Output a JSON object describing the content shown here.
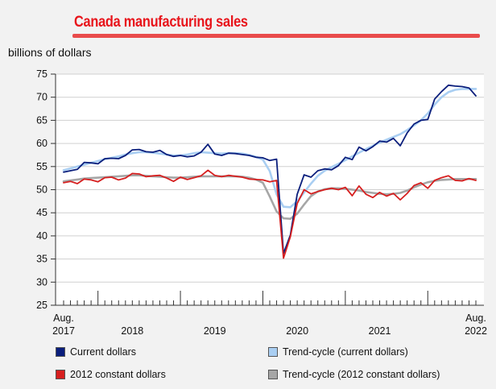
{
  "header": {
    "title": "Canada manufacturing sales",
    "units": "billions of dollars"
  },
  "legend": [
    {
      "key": "current",
      "label": "Current dollars",
      "color": "#0a1e7c"
    },
    {
      "key": "trend_current",
      "label": "Trend-cycle (current dollars)",
      "color": "#a9cef2"
    },
    {
      "key": "constant",
      "label": "2012 constant dollars",
      "color": "#d61f1f"
    },
    {
      "key": "trend_constant",
      "label": "Trend-cycle (2012 constant dollars)",
      "color": "#a6a6a6"
    }
  ],
  "chart_data": {
    "type": "line",
    "title": "Canada manufacturing sales",
    "ylabel": "billions of dollars",
    "xlabel": "",
    "ylim": [
      25,
      75
    ],
    "yticks": [
      25,
      30,
      35,
      40,
      45,
      50,
      55,
      60,
      65,
      70,
      75
    ],
    "x_start": "Aug. 2017",
    "x_end": "Aug. 2022",
    "xaxis_labels": [
      {
        "text": "Aug.\n2017",
        "index": 0
      },
      {
        "text": "2018",
        "index": 10
      },
      {
        "text": "2019",
        "index": 22
      },
      {
        "text": "2020",
        "index": 34
      },
      {
        "text": "2021",
        "index": 46
      },
      {
        "text": "Aug.\n2022",
        "index": 60
      }
    ],
    "series": [
      {
        "name": "Current dollars",
        "color": "#0a1e7c",
        "values": [
          53.8,
          54.1,
          54.4,
          55.9,
          55.8,
          55.6,
          56.7,
          56.8,
          56.7,
          57.4,
          58.6,
          58.7,
          58.2,
          58.1,
          58.5,
          57.6,
          57.2,
          57.4,
          57.1,
          57.3,
          58.1,
          59.8,
          57.7,
          57.4,
          57.9,
          57.8,
          57.6,
          57.4,
          57.0,
          56.9,
          56.3,
          56.6,
          36.2,
          40.2,
          49.0,
          53.2,
          52.7,
          54.1,
          54.5,
          54.3,
          55.2,
          57.0,
          56.5,
          59.2,
          58.4,
          59.3,
          60.5,
          60.3,
          61.1,
          59.5,
          62.3,
          64.2,
          65.0,
          65.2,
          69.6,
          71.2,
          72.6,
          72.4,
          72.3,
          72.0,
          70.3
        ],
        "trend": false
      },
      {
        "name": "Trend-cycle (current dollars)",
        "color": "#a9cef2",
        "values": [
          54.2,
          54.6,
          55.0,
          55.4,
          55.8,
          56.2,
          56.6,
          56.9,
          57.2,
          57.6,
          57.9,
          58.1,
          58.1,
          58.0,
          57.8,
          57.6,
          57.4,
          57.4,
          57.6,
          57.9,
          58.1,
          58.0,
          57.9,
          57.8,
          57.9,
          57.9,
          57.8,
          57.5,
          57.1,
          56.5,
          54.0,
          49.0,
          46.3,
          46.2,
          47.5,
          49.4,
          51.3,
          53.0,
          54.1,
          54.9,
          55.6,
          56.4,
          57.2,
          58.0,
          58.8,
          59.5,
          60.2,
          60.8,
          61.4,
          62.0,
          62.9,
          63.9,
          65.0,
          66.5,
          68.4,
          70.0,
          71.1,
          71.6,
          71.8,
          71.8,
          71.8
        ],
        "trend": true
      },
      {
        "name": "2012 constant dollars",
        "color": "#d61f1f",
        "values": [
          51.5,
          51.8,
          51.3,
          52.3,
          52.1,
          51.7,
          52.6,
          52.7,
          52.1,
          52.5,
          53.5,
          53.4,
          52.8,
          53.0,
          53.1,
          52.5,
          51.8,
          52.7,
          52.2,
          52.6,
          53.0,
          54.2,
          53.1,
          52.8,
          53.1,
          52.9,
          52.7,
          52.3,
          52.2,
          52.1,
          51.7,
          52.0,
          35.2,
          39.8,
          47.0,
          50.0,
          49.1,
          49.6,
          50.0,
          50.3,
          50.0,
          50.5,
          48.7,
          50.8,
          49.0,
          48.3,
          49.4,
          48.6,
          49.2,
          47.8,
          49.2,
          50.9,
          51.5,
          50.3,
          52.0,
          52.6,
          53.0,
          52.0,
          51.9,
          52.4,
          52.0
        ],
        "trend": false
      },
      {
        "name": "Trend-cycle (2012 constant dollars)",
        "color": "#a6a6a6",
        "values": [
          51.8,
          52.0,
          52.2,
          52.4,
          52.5,
          52.6,
          52.7,
          52.8,
          52.9,
          53.0,
          53.1,
          53.1,
          53.0,
          52.9,
          52.8,
          52.7,
          52.6,
          52.6,
          52.7,
          52.8,
          52.9,
          52.9,
          52.9,
          52.9,
          52.9,
          52.9,
          52.8,
          52.6,
          52.2,
          51.5,
          48.5,
          45.3,
          43.8,
          43.7,
          44.8,
          46.8,
          48.6,
          49.6,
          50.1,
          50.3,
          50.3,
          50.2,
          50.0,
          49.8,
          49.5,
          49.3,
          49.1,
          49.0,
          49.1,
          49.3,
          49.8,
          50.5,
          51.1,
          51.6,
          51.9,
          52.1,
          52.2,
          52.3,
          52.3,
          52.3,
          52.3
        ],
        "trend": true
      }
    ]
  }
}
